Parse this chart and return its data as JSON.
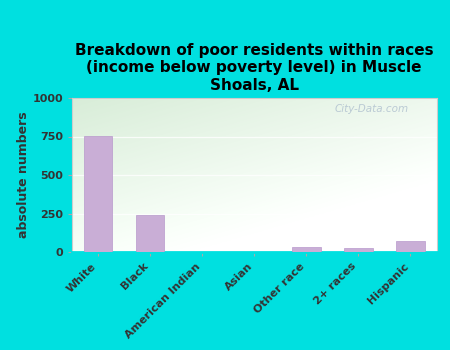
{
  "title": "Breakdown of poor residents within races\n(income below poverty level) in Muscle\nShoals, AL",
  "categories": [
    "White",
    "Black",
    "American Indian",
    "Asian",
    "Other race",
    "2+ races",
    "Hispanic"
  ],
  "values": [
    755,
    242,
    0,
    0,
    30,
    25,
    72
  ],
  "bar_color": "#c9aed6",
  "bar_edge_color": "#b899cc",
  "ylabel": "absolute numbers",
  "ylim": [
    0,
    1000
  ],
  "yticks": [
    0,
    250,
    500,
    750,
    1000
  ],
  "background_color": "#00e0e0",
  "plot_bg_color_topleft": "#d8edd8",
  "plot_bg_color_topright": "#eef8ee",
  "plot_bg_color_bottom": "#f8fff8",
  "title_fontsize": 11,
  "axis_label_fontsize": 9,
  "tick_fontsize": 8,
  "watermark": "City-Data.com"
}
